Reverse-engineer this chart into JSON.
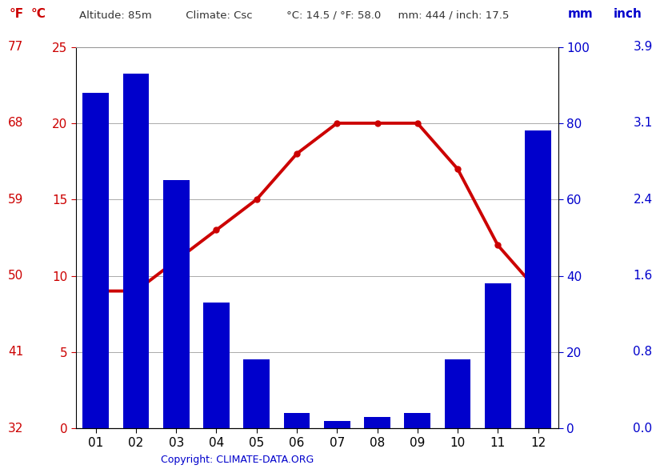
{
  "months": [
    "01",
    "02",
    "03",
    "04",
    "05",
    "06",
    "07",
    "08",
    "09",
    "10",
    "11",
    "12"
  ],
  "precipitation_mm": [
    88,
    93,
    65,
    33,
    18,
    4,
    2,
    3,
    4,
    18,
    38,
    78
  ],
  "temperature_c": [
    9.0,
    9.0,
    11.0,
    13.0,
    15.0,
    18.0,
    20.0,
    20.0,
    20.0,
    17.0,
    12.0,
    9.0
  ],
  "bar_color": "#0000cc",
  "line_color": "#cc0000",
  "left_yticks_c": [
    0,
    5,
    10,
    15,
    20,
    25
  ],
  "left_yticks_f": [
    32,
    41,
    50,
    59,
    68,
    77
  ],
  "right_yticks_mm": [
    0,
    20,
    40,
    60,
    80,
    100
  ],
  "right_yticks_inch": [
    "0.0",
    "0.8",
    "1.6",
    "2.4",
    "3.1",
    "3.9"
  ],
  "ylim_temp_min": 0,
  "ylim_temp_max": 25,
  "ylim_precip_min": 0,
  "ylim_precip_max": 100,
  "header_info": "Altitude: 85m          Climate: Csc          °C: 14.5 / °F: 58.0     mm: 444 / inch: 17.5",
  "label_f": "°F",
  "label_c": "°C",
  "label_mm": "mm",
  "label_inch": "inch",
  "copyright": "Copyright: CLIMATE-DATA.ORG",
  "grid_color": "#aaaaaa",
  "background_color": "#ffffff",
  "text_color_red": "#cc0000",
  "text_color_blue": "#0000cc",
  "text_color_black": "#333333"
}
